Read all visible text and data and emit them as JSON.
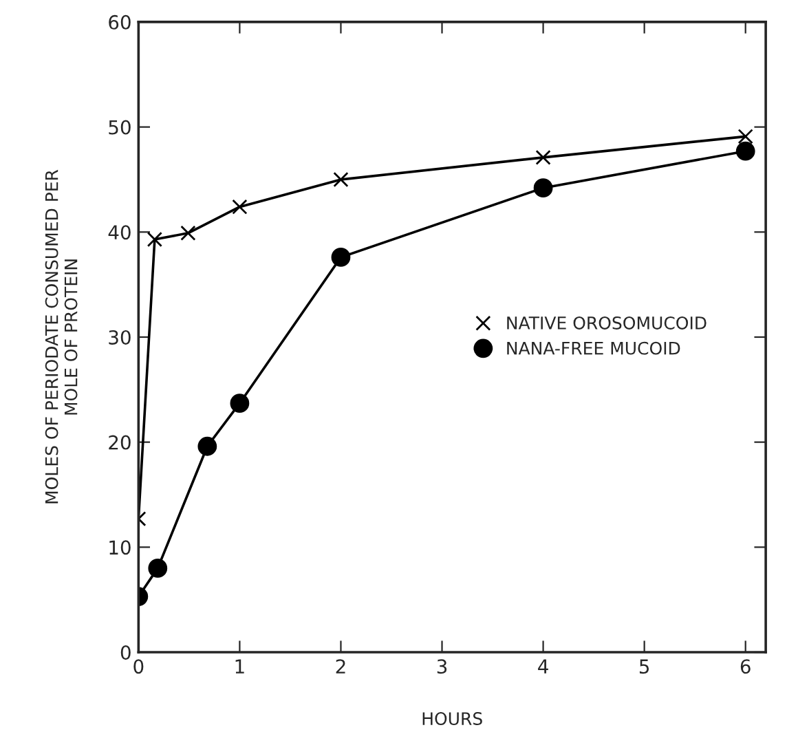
{
  "chart_data": {
    "type": "line",
    "xlabel": "HOURS",
    "ylabel": "MOLES OF PERIODATE CONSUMED PER\nMOLE OF PROTEIN",
    "series": [
      {
        "name": "NATIVE OROSOMUCOID",
        "color": "#000000",
        "marker": "cross",
        "x": [
          0,
          0.16,
          0.49,
          1,
          2,
          4,
          6
        ],
        "values": [
          12.7,
          39.3,
          39.9,
          42.4,
          45,
          47.1,
          49.1
        ]
      },
      {
        "name": "NANA-FREE MUCOID",
        "color": "#000000",
        "marker": "circle",
        "x": [
          0,
          0.19,
          0.68,
          1,
          2,
          4,
          6
        ],
        "values": [
          5.3,
          8.0,
          19.6,
          23.7,
          37.6,
          44.2,
          47.7
        ]
      }
    ],
    "xlim": [
      0,
      6.2
    ],
    "ylim": [
      0,
      60
    ],
    "xticks": [
      0,
      1,
      2,
      3,
      4,
      5,
      6
    ],
    "yticks": [
      0,
      10,
      20,
      30,
      40,
      50,
      60
    ],
    "grid": false,
    "legend": "right",
    "line_style": "solid"
  }
}
